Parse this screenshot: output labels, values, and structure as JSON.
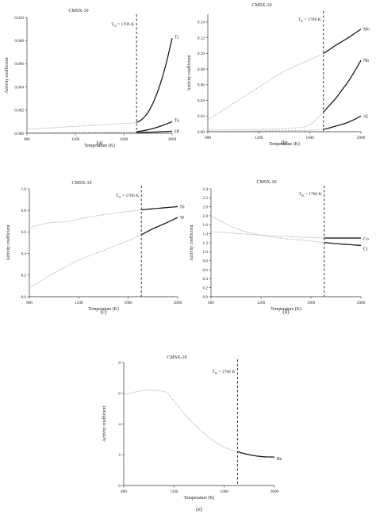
{
  "chart_data": [
    {
      "id": "a",
      "type": "line",
      "panel_label": "(a)",
      "title": "CMSX-10",
      "xlabel": "Temperature (K)",
      "ylabel": "Activity coefficient",
      "xlim": [
        800,
        2000
      ],
      "ylim": [
        0,
        0.01
      ],
      "xticks": [
        800,
        1200,
        1600,
        2000
      ],
      "xtick_labels": [
        "800",
        "1200",
        "1600",
        "2000"
      ],
      "yticks": [
        0,
        0.002,
        0.004,
        0.006,
        0.008,
        0.01
      ],
      "ytick_labels": [
        "0.000",
        "0.002",
        "0.004",
        "0.006",
        "0.008",
        "0.010"
      ],
      "melt_line": {
        "x": 1706,
        "label": "Tm = 1706 K"
      },
      "series": [
        {
          "name": "Ti",
          "x": [
            800,
            1000,
            1200,
            1400,
            1600,
            1706,
            1750,
            1800,
            1850,
            1900,
            1950,
            2000
          ],
          "values": [
            0.00035,
            0.00047,
            0.0006,
            0.00072,
            0.00085,
            0.00095,
            0.0012,
            0.0018,
            0.0028,
            0.0042,
            0.006,
            0.0082
          ]
        },
        {
          "name": "Ta",
          "x": [
            800,
            1200,
            1600,
            1706,
            1800,
            1900,
            2000
          ],
          "values": [
            5e-05,
            8e-05,
            0.00012,
            0.00015,
            0.0003,
            0.0006,
            0.001
          ]
        },
        {
          "name": "Hf",
          "x": [
            800,
            1200,
            1600,
            1706,
            1800,
            1900,
            2000
          ],
          "values": [
            2e-05,
            3e-05,
            5e-05,
            6e-05,
            9e-05,
            0.00013,
            0.00018
          ]
        }
      ]
    },
    {
      "id": "b",
      "type": "line",
      "panel_label": "(b)",
      "title": "CMSX-10",
      "xlabel": "Temperature (K)",
      "ylabel": "Activity coefficient",
      "xlim": [
        800,
        2000
      ],
      "ylim": [
        0,
        0.15
      ],
      "xticks": [
        800,
        1200,
        1600,
        2000
      ],
      "xtick_labels": [
        "800",
        "1200",
        "1600",
        "2000"
      ],
      "yticks": [
        0,
        0.02,
        0.04,
        0.06,
        0.08,
        0.1,
        0.12,
        0.14
      ],
      "ytick_labels": [
        "0.00",
        "0.02",
        "0.04",
        "0.06",
        "0.08",
        "0.10",
        "0.12",
        "0.14"
      ],
      "melt_line": {
        "x": 1706,
        "label": "Tm = 1706 K"
      },
      "series": [
        {
          "name": "Mo",
          "x": [
            800,
            1000,
            1200,
            1400,
            1600,
            1706,
            1800,
            1900,
            2000
          ],
          "values": [
            0.015,
            0.036,
            0.057,
            0.077,
            0.092,
            0.1,
            0.11,
            0.12,
            0.131
          ]
        },
        {
          "name": "Nb",
          "x": [
            800,
            1200,
            1500,
            1600,
            1706,
            1750,
            1800,
            1850,
            1900,
            1950,
            2000
          ],
          "values": [
            0.002,
            0.003,
            0.005,
            0.009,
            0.025,
            0.033,
            0.042,
            0.053,
            0.064,
            0.077,
            0.091
          ]
        },
        {
          "name": "Al",
          "x": [
            800,
            1200,
            1600,
            1706,
            1800,
            1900,
            2000
          ],
          "values": [
            0.0005,
            0.001,
            0.002,
            0.003,
            0.007,
            0.012,
            0.02
          ]
        }
      ]
    },
    {
      "id": "c",
      "type": "line",
      "panel_label": "(c)",
      "title": "CMSX-10",
      "xlabel": "Temperature (K)",
      "ylabel": "Activity coefficient",
      "xlim": [
        800,
        2000
      ],
      "ylim": [
        0,
        1.0
      ],
      "xticks": [
        800,
        1200,
        1600,
        2000
      ],
      "xtick_labels": [
        "800",
        "1200",
        "1600",
        "2000"
      ],
      "yticks": [
        0,
        0.2,
        0.4,
        0.6,
        0.8,
        1.0
      ],
      "ytick_labels": [
        "0.0",
        "0.2",
        "0.4",
        "0.6",
        "0.8",
        "1.0"
      ],
      "melt_line": {
        "x": 1706,
        "label": "Tm = 1706 K"
      },
      "series": [
        {
          "name": "Ni",
          "x": [
            800,
            900,
            1000,
            1100,
            1200,
            1400,
            1600,
            1706,
            1800,
            1900,
            2000
          ],
          "values": [
            0.64,
            0.67,
            0.69,
            0.695,
            0.72,
            0.76,
            0.79,
            0.805,
            0.815,
            0.825,
            0.835
          ]
        },
        {
          "name": "W",
          "x": [
            800,
            900,
            1000,
            1100,
            1200,
            1400,
            1600,
            1706,
            1800,
            1900,
            2000
          ],
          "values": [
            0.085,
            0.15,
            0.22,
            0.28,
            0.34,
            0.43,
            0.52,
            0.575,
            0.63,
            0.68,
            0.735
          ]
        }
      ]
    },
    {
      "id": "d",
      "type": "line",
      "panel_label": "(d)",
      "title": "CMSX-10",
      "xlabel": "Temperature (K)",
      "ylabel": "Activity coefficient",
      "xlim": [
        800,
        2000
      ],
      "ylim": [
        0,
        2.4
      ],
      "xticks": [
        800,
        1200,
        1600,
        2000
      ],
      "xtick_labels": [
        "800",
        "1200",
        "1600",
        "2000"
      ],
      "yticks": [
        0,
        0.2,
        0.4,
        0.6,
        0.8,
        1.0,
        1.2,
        1.4,
        1.6,
        1.8,
        2.0,
        2.2,
        2.4
      ],
      "ytick_labels": [
        "0.0",
        "0.2",
        "0.4",
        "0.6",
        "0.8",
        "1.0",
        "1.2",
        "1.4",
        "1.6",
        "1.8",
        "2.0",
        "2.2",
        "2.4"
      ],
      "melt_line": {
        "x": 1706,
        "label": "Tm = 1706 K"
      },
      "series": [
        {
          "name": "Co",
          "x": [
            800,
            1000,
            1200,
            1400,
            1600,
            1706,
            1800,
            1900,
            2000
          ],
          "values": [
            1.45,
            1.41,
            1.37,
            1.34,
            1.315,
            1.305,
            1.305,
            1.305,
            1.305
          ]
        },
        {
          "name": "Cr",
          "x": [
            800,
            900,
            1000,
            1100,
            1200,
            1400,
            1600,
            1706,
            1800,
            1900,
            2000
          ],
          "values": [
            1.8,
            1.65,
            1.52,
            1.43,
            1.37,
            1.29,
            1.24,
            1.205,
            1.18,
            1.16,
            1.14
          ]
        }
      ]
    },
    {
      "id": "e",
      "type": "line",
      "panel_label": "(e)",
      "title": "CMSX-10",
      "xlabel": "Temperature (K)",
      "ylabel": "Activity coefficient",
      "xlim": [
        800,
        2000
      ],
      "ylim": [
        0,
        8
      ],
      "xticks": [
        800,
        1200,
        1600,
        2000
      ],
      "xtick_labels": [
        "800",
        "1200",
        "1600",
        "2000"
      ],
      "yticks": [
        0,
        2,
        4,
        6,
        8
      ],
      "ytick_labels": [
        "0",
        "2",
        "4",
        "6",
        "8"
      ],
      "melt_line": {
        "x": 1706,
        "label": "Tm = 1706 K"
      },
      "series": [
        {
          "name": "Re",
          "x": [
            800,
            900,
            1000,
            1100,
            1150,
            1200,
            1300,
            1400,
            1500,
            1600,
            1706,
            1800,
            1900,
            2000
          ],
          "values": [
            5.9,
            6.1,
            6.2,
            6.15,
            6.0,
            5.5,
            4.5,
            3.7,
            3.0,
            2.5,
            2.2,
            2.0,
            1.88,
            1.85
          ]
        }
      ]
    }
  ]
}
